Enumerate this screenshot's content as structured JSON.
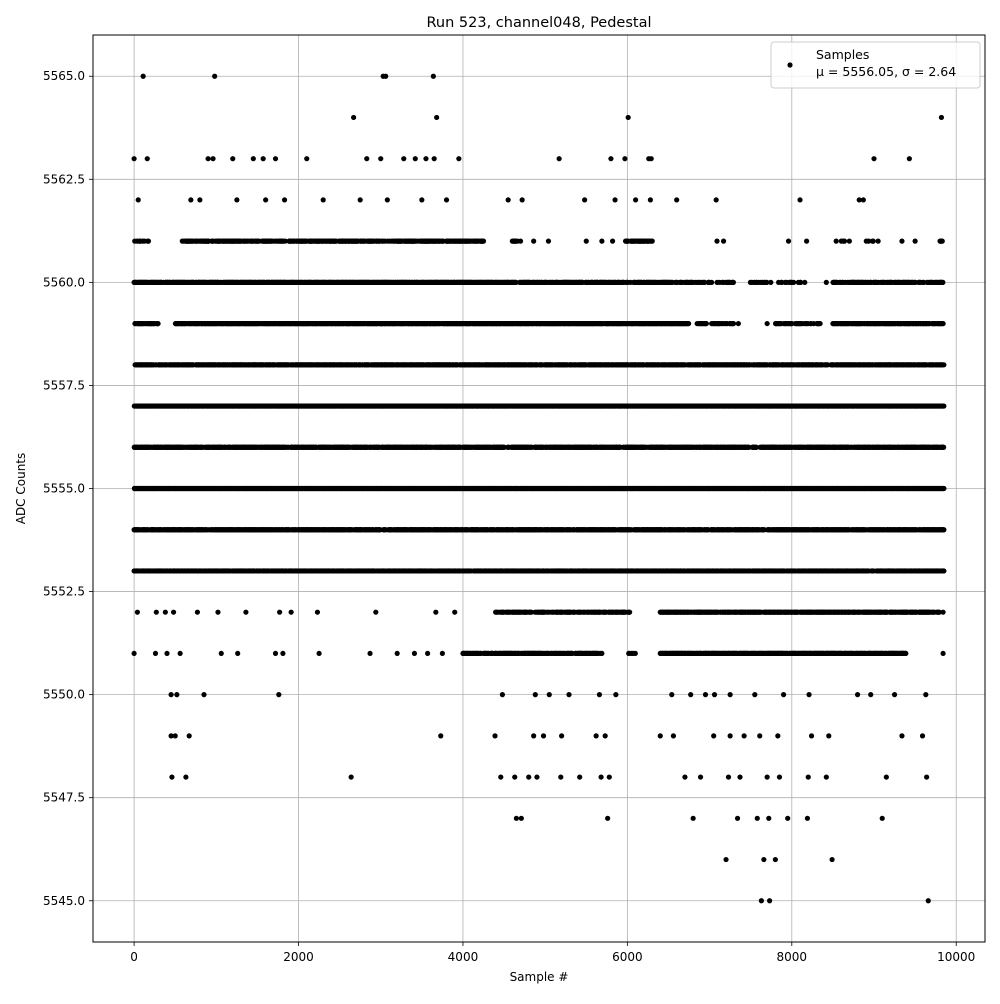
{
  "chart_data": {
    "type": "scatter",
    "title": "Run 523, channel048, Pedestal",
    "xlabel": "Sample #",
    "ylabel": "ADC Counts",
    "xlim": [
      -500,
      10350
    ],
    "ylim": [
      5544,
      5566
    ],
    "xticks": [
      0,
      2000,
      4000,
      6000,
      8000,
      10000
    ],
    "xtick_labels": [
      "0",
      "2000",
      "4000",
      "6000",
      "8000",
      "10000"
    ],
    "yticks": [
      5545.0,
      5547.5,
      5550.0,
      5552.5,
      5555.0,
      5557.5,
      5560.0,
      5562.5,
      5565.0
    ],
    "ytick_labels": [
      "5545.0",
      "5547.5",
      "5550.0",
      "5552.5",
      "5555.0",
      "5557.5",
      "5560.0",
      "5562.5",
      "5565.0"
    ],
    "grid": true,
    "legend": {
      "position": "top-right",
      "label": "Samples",
      "stats": "μ = 5556.05, σ = 2.64"
    },
    "marker_color": "#000000",
    "n_samples": 9840,
    "series": [
      {
        "name": "Samples",
        "points": [
          [
            110,
            5565
          ],
          [
            980,
            5565
          ],
          [
            3030,
            5565
          ],
          [
            3060,
            5565
          ],
          [
            3640,
            5565
          ],
          [
            2670,
            5564
          ],
          [
            3680,
            5564
          ],
          [
            6010,
            5564
          ],
          [
            9820,
            5564
          ],
          [
            0,
            5563
          ],
          [
            160,
            5563
          ],
          [
            900,
            5563
          ],
          [
            960,
            5563
          ],
          [
            1200,
            5563
          ],
          [
            1450,
            5563
          ],
          [
            1570,
            5563
          ],
          [
            1720,
            5563
          ],
          [
            2100,
            5563
          ],
          [
            2830,
            5563
          ],
          [
            3000,
            5563
          ],
          [
            3280,
            5563
          ],
          [
            3420,
            5563
          ],
          [
            3550,
            5563
          ],
          [
            3650,
            5563
          ],
          [
            3950,
            5563
          ],
          [
            5170,
            5563
          ],
          [
            5800,
            5563
          ],
          [
            5970,
            5563
          ],
          [
            6260,
            5563
          ],
          [
            6290,
            5563
          ],
          [
            9000,
            5563
          ],
          [
            9430,
            5563
          ],
          [
            50,
            5562
          ],
          [
            690,
            5562
          ],
          [
            800,
            5562
          ],
          [
            1250,
            5562
          ],
          [
            1600,
            5562
          ],
          [
            1830,
            5562
          ],
          [
            2300,
            5562
          ],
          [
            2750,
            5562
          ],
          [
            3080,
            5562
          ],
          [
            3500,
            5562
          ],
          [
            3800,
            5562
          ],
          [
            4550,
            5562
          ],
          [
            4720,
            5562
          ],
          [
            5480,
            5562
          ],
          [
            5850,
            5562
          ],
          [
            6100,
            5562
          ],
          [
            6280,
            5562
          ],
          [
            6600,
            5562
          ],
          [
            7080,
            5562
          ],
          [
            8100,
            5562
          ],
          [
            8820,
            5562
          ],
          [
            8870,
            5562
          ],
          [
            9810,
            5561
          ],
          [
            9830,
            5561
          ],
          [
            9500,
            5561
          ],
          [
            9340,
            5561
          ],
          [
            9050,
            5561
          ],
          [
            8700,
            5561
          ],
          [
            8540,
            5561
          ],
          [
            8180,
            5561
          ],
          [
            7960,
            5561
          ],
          [
            7090,
            5561
          ],
          [
            7170,
            5561
          ],
          [
            6200,
            5561
          ],
          [
            5820,
            5561
          ],
          [
            5690,
            5561
          ],
          [
            5500,
            5561
          ],
          [
            5040,
            5561
          ],
          [
            4860,
            5561
          ],
          [
            4700,
            5561
          ],
          [
            4220,
            5561
          ],
          [
            8420,
            5560
          ],
          [
            9820,
            5558
          ],
          [
            8760,
            5552
          ],
          [
            9150,
            5548
          ],
          [
            9100,
            5547
          ],
          [
            7200,
            5546
          ],
          [
            7660,
            5546
          ],
          [
            7800,
            5546
          ],
          [
            8490,
            5546
          ],
          [
            7630,
            5545
          ],
          [
            7730,
            5545
          ],
          [
            9660,
            5545
          ],
          [
            630,
            5548
          ],
          [
            460,
            5548
          ],
          [
            2640,
            5548
          ],
          [
            4460,
            5548
          ],
          [
            4630,
            5548
          ],
          [
            4800,
            5548
          ],
          [
            4900,
            5548
          ],
          [
            5190,
            5548
          ],
          [
            5420,
            5548
          ],
          [
            5680,
            5548
          ],
          [
            5780,
            5548
          ],
          [
            6700,
            5548
          ],
          [
            6890,
            5548
          ],
          [
            7230,
            5548
          ],
          [
            7370,
            5548
          ],
          [
            7700,
            5548
          ],
          [
            7850,
            5548
          ],
          [
            8200,
            5548
          ],
          [
            8420,
            5548
          ],
          [
            9640,
            5548
          ],
          [
            4650,
            5547
          ],
          [
            4710,
            5547
          ],
          [
            5760,
            5547
          ],
          [
            6800,
            5547
          ],
          [
            7340,
            5547
          ],
          [
            7580,
            5547
          ],
          [
            7720,
            5547
          ],
          [
            7950,
            5547
          ],
          [
            8190,
            5547
          ],
          [
            450,
            5549
          ],
          [
            500,
            5549
          ],
          [
            670,
            5549
          ],
          [
            3730,
            5549
          ],
          [
            4390,
            5549
          ],
          [
            4860,
            5549
          ],
          [
            4980,
            5549
          ],
          [
            5200,
            5549
          ],
          [
            5620,
            5549
          ],
          [
            5730,
            5549
          ],
          [
            6400,
            5549
          ],
          [
            6560,
            5549
          ],
          [
            7050,
            5549
          ],
          [
            7250,
            5549
          ],
          [
            7420,
            5549
          ],
          [
            7610,
            5549
          ],
          [
            7830,
            5549
          ],
          [
            8240,
            5549
          ],
          [
            8450,
            5549
          ],
          [
            9340,
            5549
          ],
          [
            9590,
            5549
          ],
          [
            450,
            5550
          ],
          [
            520,
            5550
          ],
          [
            850,
            5550
          ],
          [
            1760,
            5550
          ],
          [
            4480,
            5550
          ],
          [
            4880,
            5550
          ],
          [
            5050,
            5550
          ],
          [
            5290,
            5550
          ],
          [
            5660,
            5550
          ],
          [
            5860,
            5550
          ],
          [
            6540,
            5550
          ],
          [
            6770,
            5550
          ],
          [
            6950,
            5550
          ],
          [
            7060,
            5550
          ],
          [
            7250,
            5550
          ],
          [
            7550,
            5550
          ],
          [
            7900,
            5550
          ],
          [
            8210,
            5550
          ],
          [
            8800,
            5550
          ],
          [
            8960,
            5550
          ],
          [
            9250,
            5550
          ],
          [
            9630,
            5550
          ],
          [
            0,
            5551
          ],
          [
            260,
            5551
          ],
          [
            400,
            5551
          ],
          [
            560,
            5551
          ],
          [
            1060,
            5551
          ],
          [
            1260,
            5551
          ],
          [
            1720,
            5551
          ],
          [
            1810,
            5551
          ],
          [
            2250,
            5551
          ],
          [
            2870,
            5551
          ],
          [
            3200,
            5551
          ],
          [
            3410,
            5551
          ],
          [
            3570,
            5551
          ],
          [
            3750,
            5551
          ],
          [
            4000,
            5551
          ],
          [
            9840,
            5551
          ],
          [
            40,
            5552
          ],
          [
            270,
            5552
          ],
          [
            380,
            5552
          ],
          [
            480,
            5552
          ],
          [
            770,
            5552
          ],
          [
            1020,
            5552
          ],
          [
            1360,
            5552
          ],
          [
            1770,
            5552
          ],
          [
            1910,
            5552
          ],
          [
            2230,
            5552
          ],
          [
            2940,
            5552
          ],
          [
            3670,
            5552
          ],
          [
            3900,
            5552
          ],
          [
            9840,
            5552
          ],
          [
            2900,
            5553
          ],
          [
            3100,
            5553
          ],
          [
            3480,
            5553
          ],
          [
            3690,
            5553
          ],
          [
            5170,
            5553
          ],
          [
            3200,
            5554
          ],
          [
            3300,
            5554
          ],
          [
            4880,
            5554
          ],
          [
            5560,
            5554
          ],
          [
            400,
            5556
          ],
          [
            2540,
            5556
          ],
          [
            3440,
            5556
          ],
          [
            5530,
            5556
          ],
          [
            170,
            5558
          ],
          [
            1700,
            5558
          ],
          [
            3700,
            5558
          ],
          [
            7380,
            5558
          ],
          [
            7770,
            5558
          ],
          [
            280,
            5559
          ],
          [
            7200,
            5559
          ],
          [
            7350,
            5559
          ],
          [
            7700,
            5559
          ],
          [
            560,
            5560
          ],
          [
            1200,
            5560
          ],
          [
            1750,
            5560
          ],
          [
            5180,
            5560
          ],
          [
            5450,
            5560
          ]
        ]
      }
    ],
    "density_bands": [
      {
        "value": 5561,
        "segments": [
          [
            0,
            200,
            0.35
          ],
          [
            580,
            4250,
            0.6
          ],
          [
            4600,
            4700,
            0.5
          ],
          [
            5950,
            6300,
            0.6
          ],
          [
            8580,
            8650,
            0.5
          ],
          [
            8900,
            9000,
            0.4
          ],
          [
            9800,
            9850,
            0.5
          ]
        ]
      },
      {
        "value": 5560,
        "segments": [
          [
            0,
            4500,
            0.85
          ],
          [
            4500,
            6800,
            0.7
          ],
          [
            6800,
            7300,
            0.35
          ],
          [
            7500,
            8300,
            0.25
          ],
          [
            8500,
            9850,
            0.55
          ]
        ]
      },
      {
        "value": 5559,
        "segments": [
          [
            0,
            300,
            0.8
          ],
          [
            500,
            6750,
            0.92
          ],
          [
            6850,
            7300,
            0.55
          ],
          [
            7800,
            8350,
            0.6
          ],
          [
            8500,
            9850,
            0.75
          ]
        ]
      },
      {
        "value": 5558,
        "segments": [
          [
            0,
            9850,
            0.85
          ]
        ]
      },
      {
        "value": 5557,
        "segments": [
          [
            0,
            9850,
            1.0
          ]
        ]
      },
      {
        "value": 5556,
        "segments": [
          [
            0,
            9850,
            0.75
          ]
        ]
      },
      {
        "value": 5555,
        "segments": [
          [
            0,
            9850,
            1.0
          ]
        ]
      },
      {
        "value": 5554,
        "segments": [
          [
            0,
            9850,
            0.8
          ]
        ]
      },
      {
        "value": 5553,
        "segments": [
          [
            0,
            9850,
            0.8
          ]
        ]
      },
      {
        "value": 5552,
        "segments": [
          [
            4400,
            6050,
            0.6
          ],
          [
            6400,
            9800,
            0.8
          ]
        ]
      },
      {
        "value": 5551,
        "segments": [
          [
            4000,
            5700,
            0.7
          ],
          [
            6000,
            6100,
            0.5
          ],
          [
            6400,
            9400,
            0.85
          ]
        ]
      }
    ]
  }
}
